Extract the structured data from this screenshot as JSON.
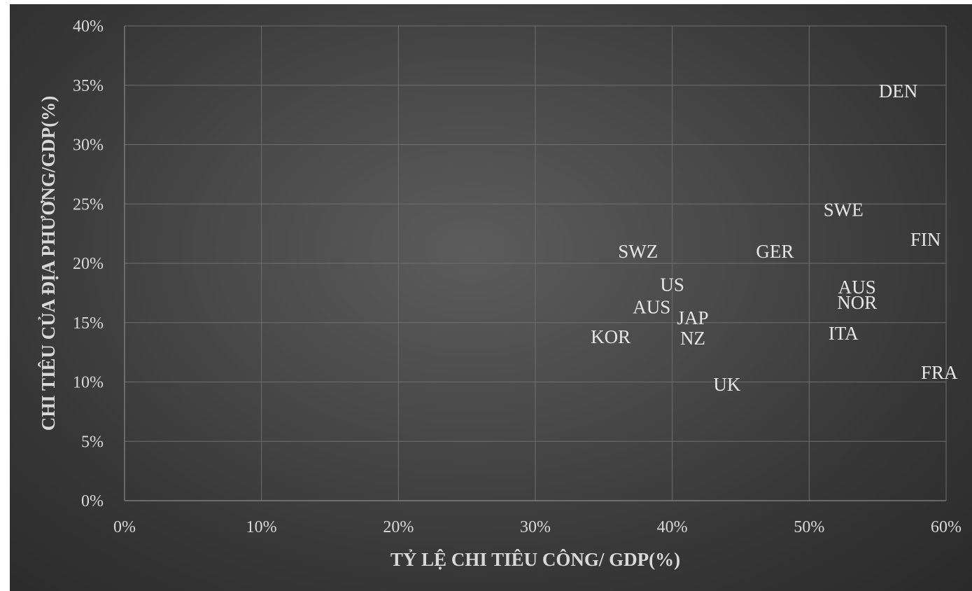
{
  "chart_data": {
    "type": "scatter",
    "xlabel": "TỶ LỆ CHI TIÊU CÔNG/ GDP(%)",
    "ylabel": "CHI TIÊU CỦA ĐỊA PHƯƠNG/GDP(%)",
    "xlim": [
      0,
      60
    ],
    "ylim": [
      0,
      40
    ],
    "x_ticks": [
      "0%",
      "10%",
      "20%",
      "30%",
      "40%",
      "50%",
      "60%"
    ],
    "y_ticks": [
      "0%",
      "5%",
      "10%",
      "15%",
      "20%",
      "25%",
      "30%",
      "35%",
      "40%"
    ],
    "grid": true,
    "points": [
      {
        "label": "DEN",
        "x": 56.5,
        "y": 34.5
      },
      {
        "label": "SWE",
        "x": 52.5,
        "y": 24.5
      },
      {
        "label": "FIN",
        "x": 58.5,
        "y": 22.0
      },
      {
        "label": "SWZ",
        "x": 37.5,
        "y": 21.0
      },
      {
        "label": "GER",
        "x": 47.5,
        "y": 21.0
      },
      {
        "label": "US",
        "x": 40.0,
        "y": 18.2
      },
      {
        "label": "AUS",
        "x": 53.5,
        "y": 18.0
      },
      {
        "label": "NOR",
        "x": 53.5,
        "y": 16.7
      },
      {
        "label": "AUS",
        "x": 38.5,
        "y": 16.3
      },
      {
        "label": "JAP",
        "x": 41.5,
        "y": 15.4
      },
      {
        "label": "ITA",
        "x": 52.5,
        "y": 14.1
      },
      {
        "label": "KOR",
        "x": 35.5,
        "y": 13.8
      },
      {
        "label": "NZ",
        "x": 41.5,
        "y": 13.7
      },
      {
        "label": "FRA",
        "x": 59.5,
        "y": 10.8
      },
      {
        "label": "UK",
        "x": 44.0,
        "y": 9.8
      }
    ]
  }
}
